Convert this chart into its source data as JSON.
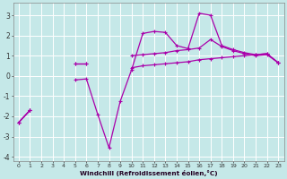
{
  "xlabel": "Windchill (Refroidissement éolien,°C)",
  "x": [
    0,
    1,
    2,
    3,
    4,
    5,
    6,
    7,
    8,
    9,
    10,
    11,
    12,
    13,
    14,
    15,
    16,
    17,
    18,
    19,
    20,
    21,
    22,
    23
  ],
  "line1": [
    -2.3,
    -1.7,
    null,
    null,
    null,
    0.6,
    0.6,
    null,
    null,
    null,
    1.0,
    1.05,
    1.1,
    1.15,
    1.25,
    1.3,
    1.38,
    1.8,
    1.45,
    1.25,
    1.1,
    1.0,
    1.05,
    0.65
  ],
  "line2": [
    -2.3,
    -1.7,
    null,
    null,
    null,
    0.6,
    0.6,
    null,
    null,
    null,
    0.4,
    0.5,
    0.55,
    0.6,
    0.65,
    0.7,
    0.8,
    0.85,
    0.9,
    0.95,
    1.0,
    1.05,
    1.1,
    0.65
  ],
  "line3": [
    -2.3,
    -1.7,
    null,
    null,
    null,
    -0.2,
    -0.15,
    -1.9,
    -3.55,
    -1.25,
    0.3,
    2.1,
    2.2,
    2.15,
    1.5,
    1.35,
    3.1,
    3.0,
    1.5,
    1.3,
    1.15,
    1.05,
    1.1,
    0.65
  ],
  "line4": [
    null,
    null,
    null,
    null,
    null,
    -0.2,
    -0.15,
    null,
    null,
    null,
    null,
    null,
    null,
    null,
    null,
    null,
    null,
    null,
    null,
    null,
    null,
    null,
    null,
    null
  ],
  "bg_color": "#c5e8e8",
  "line_color": "#aa00aa",
  "grid_color": "#ffffff",
  "ylim": [
    -4.2,
    3.6
  ],
  "yticks": [
    -4,
    -3,
    -2,
    -1,
    0,
    1,
    2,
    3
  ],
  "xlim": [
    -0.5,
    23.5
  ],
  "figsize": [
    3.2,
    2.0
  ],
  "dpi": 100
}
